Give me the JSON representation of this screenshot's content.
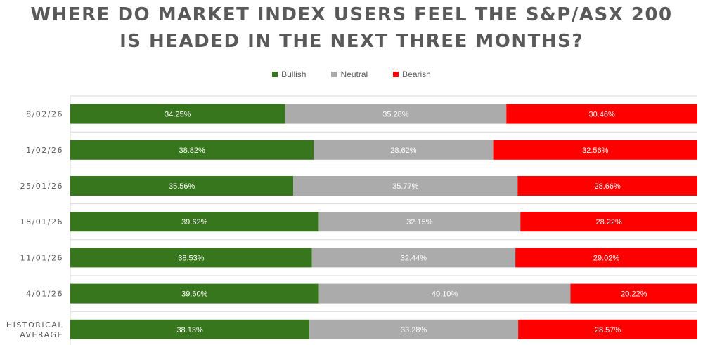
{
  "chart_data": {
    "type": "bar",
    "orientation": "horizontal",
    "stacked": "100%",
    "title_lines": [
      "WHERE DO MARKET INDEX USERS FEEL THE S&P/ASX 200",
      "IS HEADED IN THE NEXT THREE MONTHS?"
    ],
    "categories": [
      [
        "8/02/26"
      ],
      [
        "1/02/26"
      ],
      [
        "25/01/26"
      ],
      [
        "18/01/26"
      ],
      [
        "11/01/26"
      ],
      [
        "4/01/26"
      ],
      [
        "HISTORICAL",
        "AVERAGE"
      ]
    ],
    "series": [
      {
        "name": "Bullish",
        "color": "#38761d",
        "values": [
          34.25,
          38.82,
          35.56,
          39.62,
          38.53,
          39.6,
          38.13
        ],
        "labels": [
          "34.25%",
          "38.82%",
          "35.56%",
          "39.62%",
          "38.53%",
          "39.60%",
          "38.13%"
        ]
      },
      {
        "name": "Neutral",
        "color": "#ababab",
        "values": [
          35.28,
          28.62,
          35.77,
          32.15,
          32.44,
          40.1,
          33.28
        ],
        "labels": [
          "35.28%",
          "28.62%",
          "35.77%",
          "32.15%",
          "32.44%",
          "40.10%",
          "33.28%"
        ]
      },
      {
        "name": "Bearish",
        "color": "#ff0000",
        "values": [
          30.46,
          32.56,
          28.66,
          28.22,
          29.02,
          20.22,
          28.57
        ],
        "labels": [
          "30.46%",
          "32.56%",
          "28.66%",
          "28.22%",
          "29.02%",
          "20.22%",
          "28.57%"
        ]
      }
    ],
    "xlim": [
      0,
      100
    ],
    "grid": true,
    "legend_position": "top"
  }
}
